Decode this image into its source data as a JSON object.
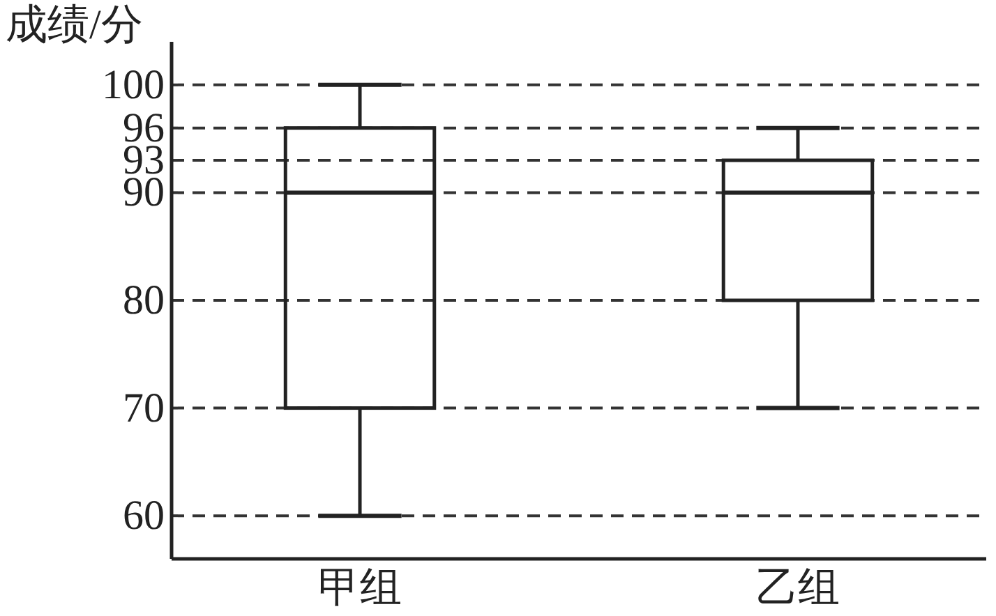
{
  "chart_data": {
    "type": "box",
    "ylabel": "成绩/分",
    "categories": [
      "甲组",
      "乙组"
    ],
    "series": [
      {
        "color": "#222222",
        "boxes": [
          {
            "low": 60,
            "q1": 70,
            "median": 90,
            "q3": 96,
            "high": 100
          },
          {
            "low": 70,
            "q1": 80,
            "median": 90,
            "q3": 93,
            "high": 96
          }
        ]
      }
    ],
    "ylim": [
      56,
      104
    ],
    "yticks": [
      60,
      70,
      80,
      90,
      93,
      96,
      100
    ],
    "grid": "y"
  }
}
